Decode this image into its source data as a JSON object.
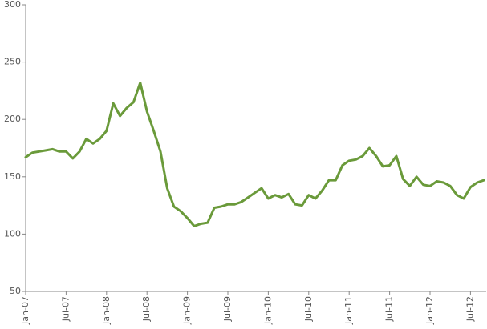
{
  "chart_data": {
    "type": "line",
    "categories": [
      "Jan-07",
      null,
      null,
      null,
      null,
      null,
      "Jul-07",
      null,
      null,
      null,
      null,
      null,
      "Jan-08",
      null,
      null,
      null,
      null,
      null,
      "Jul-08",
      null,
      null,
      null,
      null,
      null,
      "Jan-09",
      null,
      null,
      null,
      null,
      null,
      "Jul-09",
      null,
      null,
      null,
      null,
      null,
      "Jan-10",
      null,
      null,
      null,
      null,
      null,
      "Jul-10",
      null,
      null,
      null,
      null,
      null,
      "Jan-11",
      null,
      null,
      null,
      null,
      null,
      "Jul-11",
      null,
      null,
      null,
      null,
      null,
      "Jan-12",
      null,
      null,
      null,
      null,
      null,
      "Jul-12",
      null,
      null
    ],
    "values": [
      167,
      171,
      172,
      173,
      174,
      172,
      172,
      166,
      172,
      183,
      179,
      183,
      190,
      214,
      203,
      210,
      215,
      232,
      207,
      190,
      172,
      140,
      124,
      120,
      114,
      107,
      109,
      110,
      123,
      124,
      126,
      126,
      128,
      132,
      136,
      140,
      131,
      134,
      132,
      135,
      126,
      125,
      134,
      131,
      138,
      147,
      147,
      160,
      164,
      165,
      168,
      175,
      168,
      159,
      160,
      168,
      148,
      142,
      150,
      143,
      142,
      146,
      145,
      142,
      134,
      131,
      141,
      145,
      147
    ],
    "color": "#6a9a3a",
    "ylim": [
      50,
      300
    ],
    "yticks": [
      50,
      100,
      150,
      200,
      250,
      300
    ]
  }
}
